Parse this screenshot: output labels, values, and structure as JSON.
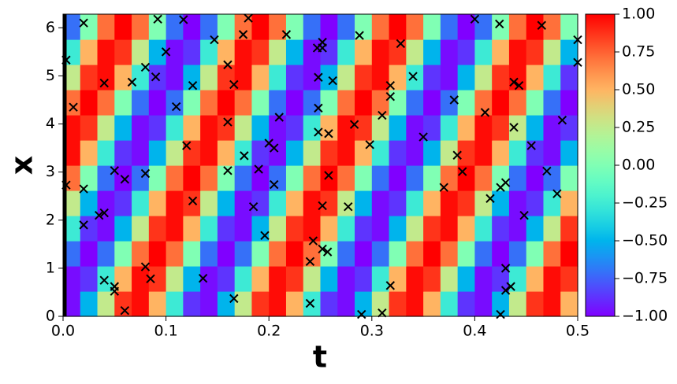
{
  "chart_data": {
    "type": "heatmap",
    "xlabel": "t",
    "ylabel": "x",
    "colormap": "rainbow",
    "xlim": [
      0,
      0.5
    ],
    "ylim": [
      0,
      6.2832
    ],
    "xticks": [
      {
        "value": 0,
        "label": "0.0"
      },
      0.1,
      0.2,
      0.3,
      0.4,
      0.5
    ],
    "yticks": [
      0,
      1,
      2,
      3,
      4,
      5,
      6
    ],
    "clim": [
      -1,
      1
    ],
    "cticks": [
      {
        "value": -1,
        "label": "−1.00"
      },
      {
        "value": -0.75,
        "label": "−0.75"
      },
      {
        "value": -0.5,
        "label": "−0.50"
      },
      {
        "value": -0.25,
        "label": "−0.25"
      },
      {
        "value": 0,
        "label": "0.00"
      },
      {
        "value": 0.25,
        "label": "0.25"
      },
      {
        "value": 0.5,
        "label": "0.50"
      },
      {
        "value": 0.75,
        "label": "0.75"
      },
      {
        "value": 1,
        "label": "1.00"
      }
    ],
    "z": [
      [
        -0.97,
        -0.5,
        0.26,
        0.87,
        0.97,
        0.5,
        -0.26,
        -0.87,
        -0.97,
        -0.5,
        0.26,
        0.87,
        0.97,
        0.5,
        -0.26,
        -0.87,
        -0.97,
        -0.5,
        0.26,
        0.87,
        0.97,
        0.5,
        -0.26,
        -0.87,
        -0.97,
        -0.5,
        0.26,
        0.87,
        0.97,
        0.5
      ],
      [
        -0.97,
        -0.87,
        -0.26,
        0.5,
        0.97,
        0.87,
        0.26,
        -0.5,
        -0.97,
        -0.87,
        -0.26,
        0.5,
        0.97,
        0.87,
        0.26,
        -0.5,
        -0.97,
        -0.87,
        -0.26,
        0.5,
        0.97,
        0.87,
        0.26,
        -0.5,
        -0.97,
        -0.87,
        -0.26,
        0.5,
        0.97,
        0.87
      ],
      [
        -0.71,
        -1,
        -0.71,
        0,
        0.71,
        1,
        0.71,
        0,
        -0.71,
        -1,
        -0.71,
        0,
        0.71,
        1,
        0.71,
        0,
        -0.71,
        -1,
        -0.71,
        0,
        0.71,
        1,
        0.71,
        0,
        -0.71,
        -1,
        -0.71,
        0,
        0.71,
        1
      ],
      [
        -0.26,
        -0.87,
        -0.97,
        -0.5,
        0.26,
        0.87,
        0.97,
        0.5,
        -0.26,
        -0.87,
        -0.97,
        -0.5,
        0.26,
        0.87,
        0.97,
        0.5,
        -0.26,
        -0.87,
        -0.97,
        -0.5,
        0.26,
        0.87,
        0.97,
        0.5,
        -0.26,
        -0.87,
        -0.97,
        -0.5,
        0.26,
        0.87
      ],
      [
        0.26,
        -0.5,
        -0.97,
        -0.87,
        -0.26,
        0.5,
        0.97,
        0.87,
        0.26,
        -0.5,
        -0.97,
        -0.87,
        -0.26,
        0.5,
        0.97,
        0.87,
        0.26,
        -0.5,
        -0.97,
        -0.87,
        -0.26,
        0.5,
        0.97,
        0.87,
        0.26,
        -0.5,
        -0.97,
        -0.87,
        -0.26,
        0.5
      ],
      [
        0.71,
        0,
        -0.71,
        -1,
        -0.71,
        0,
        0.71,
        1,
        0.71,
        0,
        -0.71,
        -1,
        -0.71,
        0,
        0.71,
        1,
        0.71,
        0,
        -0.71,
        -1,
        -0.71,
        0,
        0.71,
        1,
        0.71,
        0,
        -0.71,
        -1,
        -0.71,
        0
      ],
      [
        0.97,
        0.5,
        -0.26,
        -0.87,
        -0.97,
        -0.5,
        0.26,
        0.87,
        0.97,
        0.5,
        -0.26,
        -0.87,
        -0.97,
        -0.5,
        0.26,
        0.87,
        0.97,
        0.5,
        -0.26,
        -0.87,
        -0.97,
        -0.5,
        0.26,
        0.87,
        0.97,
        0.5,
        -0.26,
        -0.87,
        -0.97,
        -0.5
      ],
      [
        0.97,
        0.87,
        0.26,
        -0.5,
        -0.97,
        -0.87,
        -0.26,
        0.5,
        0.97,
        0.87,
        0.26,
        -0.5,
        -0.97,
        -0.87,
        -0.26,
        0.5,
        0.97,
        0.87,
        0.26,
        -0.5,
        -0.97,
        -0.87,
        -0.26,
        0.5,
        0.97,
        0.87,
        0.26,
        -0.5,
        -0.97,
        -0.87
      ],
      [
        0.71,
        1,
        0.71,
        0,
        -0.71,
        -1,
        -0.71,
        0,
        0.71,
        1,
        0.71,
        0,
        -0.71,
        -1,
        -0.71,
        0,
        0.71,
        1,
        0.71,
        0,
        -0.71,
        -1,
        -0.71,
        0,
        0.71,
        1,
        0.71,
        0,
        -0.71,
        -1
      ],
      [
        0.26,
        0.87,
        0.97,
        0.5,
        -0.26,
        -0.87,
        -0.97,
        -0.5,
        0.26,
        0.87,
        0.97,
        0.5,
        -0.26,
        -0.87,
        -0.97,
        -0.5,
        0.26,
        0.87,
        0.97,
        0.5,
        -0.26,
        -0.87,
        -0.97,
        -0.5,
        0.26,
        0.87,
        0.97,
        0.5,
        -0.26,
        -0.87
      ],
      [
        -0.26,
        0.5,
        0.97,
        0.87,
        0.26,
        -0.5,
        -0.97,
        -0.87,
        -0.26,
        0.5,
        0.97,
        0.87,
        0.26,
        -0.5,
        -0.97,
        -0.87,
        -0.26,
        0.5,
        0.97,
        0.87,
        0.26,
        -0.5,
        -0.97,
        -0.87,
        -0.26,
        0.5,
        0.97,
        0.87,
        0.26,
        -0.5
      ],
      [
        -0.71,
        0,
        0.71,
        1,
        0.71,
        0,
        -0.71,
        -1,
        -0.71,
        0,
        0.71,
        1,
        0.71,
        0,
        -0.71,
        -1,
        -0.71,
        0,
        0.71,
        1,
        0.71,
        0,
        -0.71,
        -1,
        -0.71,
        0,
        0.71,
        1,
        0.71,
        0
      ]
    ],
    "scatter": {
      "color": "#000000",
      "x": [
        0.003,
        0.01,
        0.003,
        0.02,
        0.02,
        0.02,
        0.035,
        0.04,
        0.04,
        0.04,
        0.05,
        0.06,
        0.05,
        0.05,
        0.06,
        0.067,
        0.08,
        0.08,
        0.08,
        0.085,
        0.09,
        0.092,
        0.1,
        0.11,
        0.117,
        0.12,
        0.126,
        0.126,
        0.136,
        0.147,
        0.16,
        0.16,
        0.16,
        0.166,
        0.166,
        0.175,
        0.176,
        0.18,
        0.185,
        0.19,
        0.196,
        0.2,
        0.205,
        0.205,
        0.21,
        0.217,
        0.24,
        0.24,
        0.243,
        0.247,
        0.248,
        0.248,
        0.248,
        0.252,
        0.252,
        0.252,
        0.252,
        0.257,
        0.258,
        0.258,
        0.262,
        0.277,
        0.283,
        0.288,
        0.29,
        0.298,
        0.31,
        0.31,
        0.318,
        0.318,
        0.318,
        0.328,
        0.34,
        0.35,
        0.37,
        0.38,
        0.383,
        0.388,
        0.4,
        0.41,
        0.415,
        0.424,
        0.425,
        0.425,
        0.43,
        0.43,
        0.43,
        0.435,
        0.438,
        0.438,
        0.443,
        0.448,
        0.455,
        0.465,
        0.47,
        0.48,
        0.485,
        0.5,
        0.5
      ],
      "y": [
        5.33,
        4.35,
        2.73,
        6.1,
        2.65,
        1.9,
        2.1,
        2.15,
        4.85,
        0.75,
        3.03,
        2.85,
        0.62,
        0.52,
        0.12,
        4.87,
        5.18,
        2.97,
        1.03,
        0.78,
        4.98,
        6.18,
        5.5,
        4.36,
        6.17,
        3.55,
        4.8,
        2.4,
        0.79,
        5.75,
        5.23,
        4.04,
        3.03,
        4.82,
        0.37,
        5.86,
        3.34,
        6.2,
        2.28,
        3.06,
        1.68,
        3.6,
        3.5,
        2.74,
        4.14,
        5.86,
        1.14,
        0.27,
        1.57,
        5.58,
        4.97,
        4.33,
        3.83,
        5.7,
        5.58,
        2.3,
        1.4,
        1.34,
        3.8,
        2.93,
        4.9,
        2.28,
        3.99,
        5.84,
        0.04,
        3.57,
        0.07,
        4.18,
        4.8,
        4.57,
        0.64,
        5.67,
        4.99,
        3.73,
        2.68,
        4.5,
        3.35,
        3.01,
        6.18,
        4.24,
        2.45,
        6.08,
        2.68,
        0.04,
        2.78,
        1.0,
        0.54,
        0.62,
        4.87,
        3.93,
        4.8,
        2.1,
        3.55,
        6.05,
        3.02,
        2.55,
        4.08,
        5.75,
        5.28
      ]
    }
  }
}
